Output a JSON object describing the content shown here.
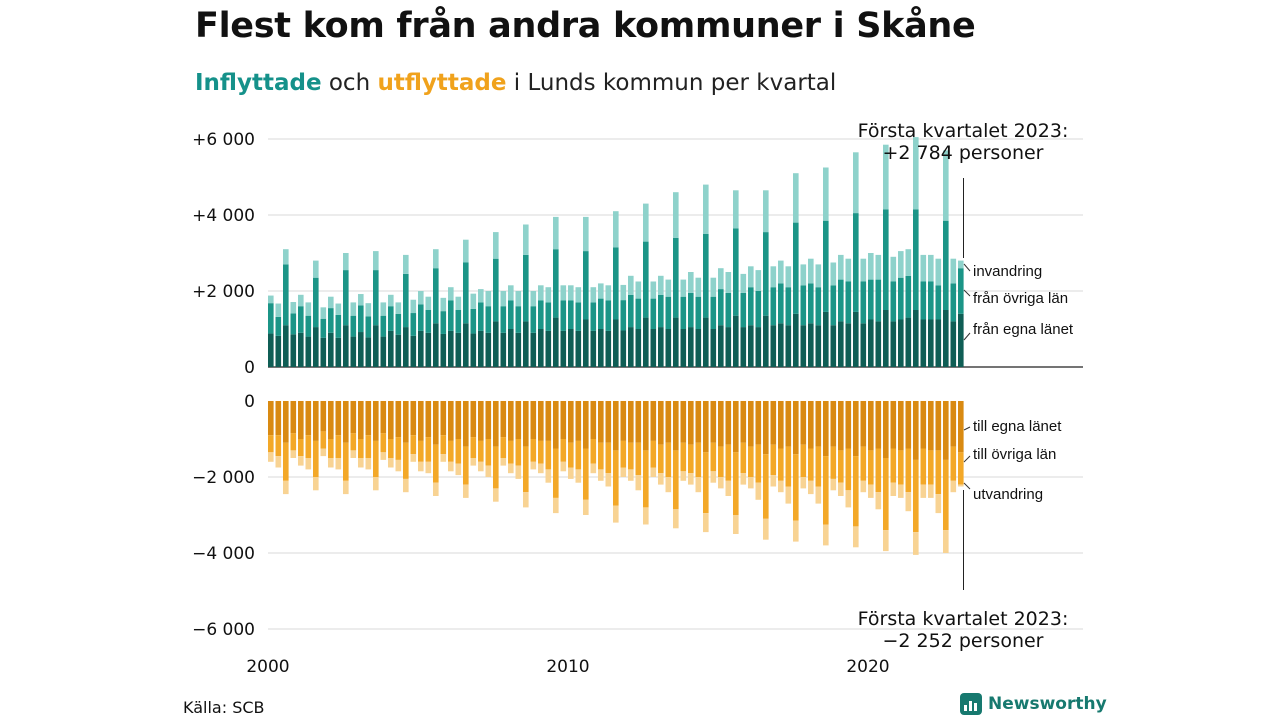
{
  "title": "Flest kom från andra kommuner i Skåne",
  "subtitle": {
    "in_word": "Inflyttade",
    "and_word": "och",
    "out_word": "utflyttade",
    "rest": "i Lunds kommun per kvartal"
  },
  "source": "Källa: SCB",
  "brand": "Newsworthy",
  "colors": {
    "in_egna": "#0f5e55",
    "in_ovriga": "#1b9587",
    "in_invandring": "#8ed2cb",
    "out_egna": "#d98a12",
    "out_ovriga": "#f3a828",
    "out_utvandring": "#f8d393",
    "grid": "#d9d9d9"
  },
  "chart_data": {
    "type": "bar",
    "stacked": true,
    "x_ticks": [
      "2000",
      "2010",
      "2020"
    ],
    "y_ticks": [
      "+6 000",
      "+4 000",
      "+2 000",
      "0",
      "0",
      "−2 000",
      "−4 000",
      "−6 000"
    ],
    "grid": true,
    "start_year": 2000,
    "quarters": 93,
    "inflow_labels": [
      "invandring",
      "från övriga län",
      "från egna länet"
    ],
    "outflow_labels": [
      "till egna länet",
      "till övriga län",
      "utvandring"
    ],
    "annotation_top": [
      "Första kvartalet 2023:",
      "+2 784 personer"
    ],
    "annotation_bottom": [
      "Första kvartalet 2023:",
      "−2 252 personer"
    ],
    "series_in": [
      {
        "name": "från egna länet",
        "values": [
          880,
          820,
          1100,
          860,
          900,
          800,
          1050,
          770,
          900,
          770,
          1100,
          800,
          920,
          780,
          1100,
          800,
          950,
          850,
          1050,
          820,
          950,
          900,
          1150,
          870,
          950,
          900,
          1150,
          880,
          950,
          900,
          1200,
          900,
          1000,
          900,
          1200,
          900,
          1000,
          950,
          1300,
          950,
          1000,
          950,
          1250,
          950,
          1000,
          950,
          1250,
          960,
          1050,
          1000,
          1300,
          1000,
          1050,
          1000,
          1300,
          1000,
          1050,
          1000,
          1300,
          1000,
          1100,
          1050,
          1350,
          1050,
          1100,
          1050,
          1350,
          1100,
          1150,
          1100,
          1400,
          1100,
          1150,
          1100,
          1450,
          1100,
          1200,
          1150,
          1450,
          1150,
          1250,
          1200,
          1500,
          1200,
          1250,
          1300,
          1500,
          1250,
          1250,
          1250,
          1500,
          1200,
          1400
        ]
      },
      {
        "name": "från övriga län",
        "values": [
          800,
          500,
          1600,
          550,
          700,
          550,
          1300,
          500,
          650,
          600,
          1450,
          550,
          700,
          550,
          1450,
          550,
          650,
          550,
          1400,
          600,
          700,
          600,
          1450,
          600,
          800,
          600,
          1600,
          650,
          750,
          700,
          1650,
          700,
          750,
          700,
          1750,
          700,
          750,
          750,
          1800,
          800,
          750,
          750,
          1800,
          750,
          800,
          800,
          1900,
          800,
          850,
          800,
          2000,
          800,
          850,
          850,
          2100,
          850,
          900,
          850,
          2200,
          850,
          950,
          900,
          2300,
          900,
          1000,
          950,
          2200,
          1000,
          1050,
          1000,
          2400,
          1050,
          1050,
          1000,
          2400,
          1050,
          1100,
          1100,
          2600,
          1100,
          1050,
          1100,
          2650,
          1050,
          1100,
          1100,
          2650,
          1000,
          1000,
          900,
          2350,
          1000,
          1200
        ]
      },
      {
        "name": "invandring",
        "values": [
          200,
          350,
          400,
          300,
          300,
          350,
          450,
          300,
          300,
          300,
          450,
          350,
          300,
          350,
          500,
          350,
          300,
          300,
          500,
          350,
          350,
          350,
          500,
          350,
          350,
          350,
          600,
          400,
          350,
          400,
          700,
          400,
          400,
          400,
          800,
          400,
          400,
          400,
          850,
          400,
          400,
          400,
          900,
          400,
          400,
          400,
          950,
          400,
          500,
          450,
          1000,
          450,
          500,
          450,
          1200,
          450,
          550,
          500,
          1300,
          500,
          550,
          550,
          1000,
          500,
          550,
          550,
          1100,
          550,
          600,
          550,
          1300,
          550,
          650,
          600,
          1400,
          600,
          650,
          600,
          1600,
          600,
          700,
          650,
          1700,
          650,
          700,
          700,
          1900,
          700,
          700,
          700,
          1850,
          650,
          200
        ]
      }
    ],
    "series_out": [
      {
        "name": "till egna länet",
        "values": [
          900,
          900,
          1100,
          850,
          1000,
          900,
          1050,
          800,
          1000,
          900,
          1100,
          850,
          1000,
          900,
          1050,
          850,
          1000,
          950,
          1100,
          900,
          1050,
          950,
          1150,
          900,
          1050,
          1000,
          1200,
          950,
          1050,
          1000,
          1200,
          950,
          1050,
          1000,
          1200,
          1000,
          1050,
          1050,
          1250,
          1000,
          1100,
          1050,
          1250,
          1000,
          1100,
          1100,
          1300,
          1050,
          1100,
          1100,
          1300,
          1050,
          1150,
          1100,
          1300,
          1100,
          1150,
          1100,
          1350,
          1100,
          1200,
          1150,
          1350,
          1100,
          1200,
          1150,
          1400,
          1150,
          1250,
          1200,
          1400,
          1150,
          1250,
          1200,
          1450,
          1200,
          1300,
          1250,
          1450,
          1200,
          1300,
          1250,
          1500,
          1250,
          1300,
          1250,
          1550,
          1250,
          1300,
          1300,
          1550,
          1200,
          1350
        ]
      },
      {
        "name": "till övriga län",
        "values": [
          450,
          550,
          1000,
          450,
          450,
          600,
          950,
          450,
          500,
          600,
          1000,
          450,
          500,
          600,
          950,
          500,
          500,
          600,
          950,
          500,
          550,
          650,
          1000,
          500,
          550,
          650,
          1000,
          550,
          550,
          700,
          1100,
          550,
          600,
          700,
          1200,
          600,
          600,
          750,
          1300,
          600,
          650,
          750,
          1350,
          650,
          700,
          800,
          1450,
          700,
          700,
          850,
          1500,
          700,
          750,
          900,
          1550,
          750,
          750,
          900,
          1600,
          750,
          800,
          950,
          1650,
          800,
          800,
          1000,
          1700,
          800,
          850,
          1050,
          1750,
          850,
          850,
          1050,
          1800,
          850,
          850,
          1100,
          1850,
          900,
          900,
          1150,
          1900,
          900,
          900,
          1150,
          1900,
          950,
          900,
          1150,
          1850,
          900,
          850
        ]
      },
      {
        "name": "utvandring",
        "values": [
          250,
          300,
          350,
          200,
          250,
          300,
          350,
          200,
          250,
          300,
          350,
          200,
          250,
          300,
          350,
          200,
          250,
          300,
          350,
          200,
          250,
          300,
          350,
          200,
          250,
          300,
          350,
          200,
          250,
          300,
          350,
          200,
          250,
          350,
          400,
          200,
          250,
          350,
          400,
          250,
          300,
          350,
          400,
          250,
          300,
          350,
          450,
          250,
          300,
          400,
          450,
          250,
          300,
          400,
          500,
          250,
          300,
          400,
          500,
          300,
          300,
          400,
          500,
          300,
          300,
          450,
          550,
          300,
          300,
          450,
          550,
          300,
          350,
          450,
          550,
          300,
          350,
          450,
          550,
          300,
          350,
          450,
          550,
          350,
          350,
          500,
          600,
          350,
          350,
          500,
          600,
          300,
          50
        ]
      }
    ]
  }
}
